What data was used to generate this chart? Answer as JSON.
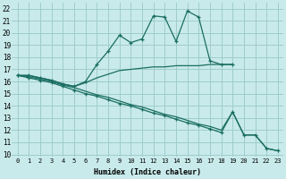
{
  "xlabel": "Humidex (Indice chaleur)",
  "bg_color": "#c8eaea",
  "grid_color": "#a0cccc",
  "line_color": "#1a6e62",
  "xlim": [
    -0.5,
    23.5
  ],
  "ylim": [
    9.8,
    22.5
  ],
  "xticks": [
    0,
    1,
    2,
    3,
    4,
    5,
    6,
    7,
    8,
    9,
    10,
    11,
    12,
    13,
    14,
    15,
    16,
    17,
    18,
    19,
    20,
    21,
    22,
    23
  ],
  "yticks": [
    10,
    11,
    12,
    13,
    14,
    15,
    16,
    17,
    18,
    19,
    20,
    21,
    22
  ],
  "line1_x": [
    0,
    1,
    2,
    3,
    4,
    5,
    6,
    7,
    8,
    9,
    10,
    11,
    12,
    13,
    14,
    15,
    16,
    17,
    18,
    19
  ],
  "line1_y": [
    16.5,
    16.5,
    16.3,
    16.1,
    15.8,
    15.6,
    16.0,
    17.4,
    18.5,
    19.8,
    19.2,
    19.5,
    21.4,
    21.3,
    19.3,
    21.8,
    21.3,
    17.7,
    17.4,
    17.4
  ],
  "line2_x": [
    0,
    1,
    2,
    3,
    4,
    5,
    6,
    7,
    8,
    9,
    10,
    11,
    12,
    13,
    14,
    15,
    16,
    17,
    18,
    19
  ],
  "line2_y": [
    16.5,
    16.5,
    16.3,
    16.1,
    15.8,
    15.6,
    15.9,
    16.3,
    16.6,
    16.9,
    17.0,
    17.1,
    17.2,
    17.2,
    17.3,
    17.3,
    17.3,
    17.4,
    17.4,
    17.4
  ],
  "line3_x": [
    0,
    1,
    2,
    3,
    4,
    5,
    6,
    7,
    8,
    9,
    10,
    11,
    12,
    13,
    14,
    15,
    16,
    17,
    18,
    19,
    20,
    21,
    22,
    23
  ],
  "line3_y": [
    16.5,
    16.4,
    16.2,
    16.0,
    15.7,
    15.5,
    15.2,
    14.9,
    14.7,
    14.4,
    14.1,
    13.9,
    13.6,
    13.3,
    13.1,
    12.8,
    12.5,
    12.3,
    12.0,
    13.5,
    11.6,
    11.6,
    10.5,
    10.3
  ],
  "line4_x": [
    0,
    1,
    2,
    3,
    4,
    5,
    6,
    7,
    8,
    9,
    10,
    11,
    12,
    13,
    14,
    15,
    16,
    17,
    18,
    19,
    20,
    21,
    22,
    23
  ],
  "line4_y": [
    16.5,
    16.3,
    16.1,
    15.9,
    15.6,
    15.3,
    15.0,
    14.8,
    14.5,
    14.2,
    14.0,
    13.7,
    13.4,
    13.2,
    12.9,
    12.6,
    12.4,
    12.1,
    11.8,
    13.5,
    11.6,
    11.6,
    10.5,
    10.3
  ]
}
